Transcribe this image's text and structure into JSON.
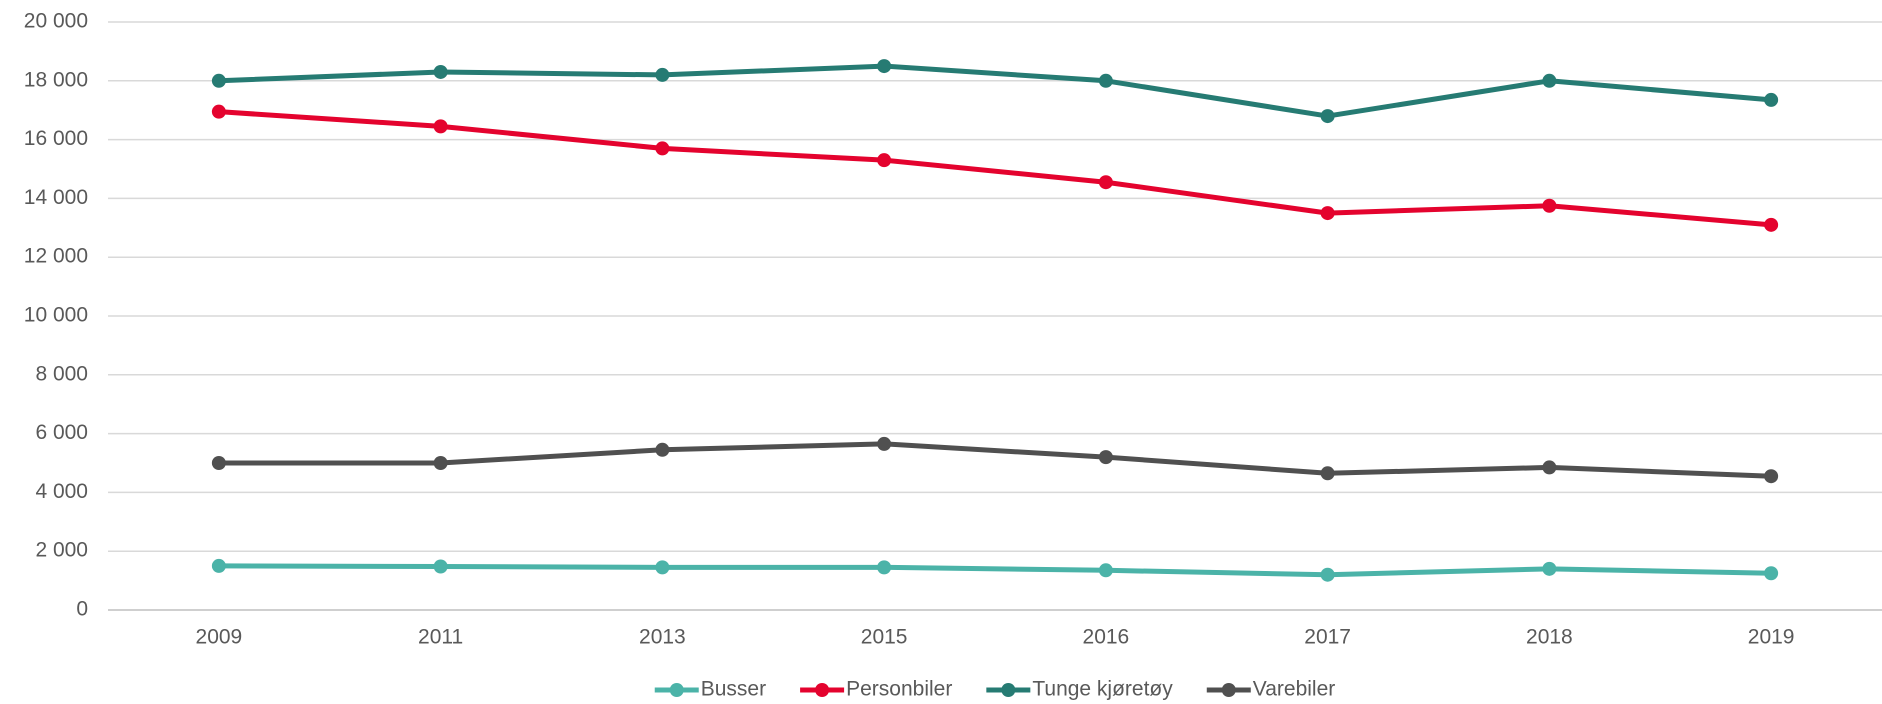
{
  "chart_data": {
    "type": "line",
    "categories": [
      "2009",
      "2011",
      "2013",
      "2015",
      "2016",
      "2017",
      "2018",
      "2019"
    ],
    "series": [
      {
        "name": "Busser",
        "color": "#4bb3a8",
        "values": [
          1500,
          1480,
          1450,
          1450,
          1350,
          1200,
          1400,
          1250
        ]
      },
      {
        "name": "Personbiler",
        "color": "#e4032e",
        "values": [
          16950,
          16450,
          15700,
          15300,
          14550,
          13500,
          13750,
          13100
        ]
      },
      {
        "name": "Tunge kjøretøy",
        "color": "#267b73",
        "values": [
          18000,
          18300,
          18200,
          18500,
          18000,
          16800,
          18000,
          17350
        ]
      },
      {
        "name": "Varebiler",
        "color": "#505050",
        "values": [
          5000,
          5000,
          5450,
          5650,
          5200,
          4650,
          4850,
          4550
        ]
      }
    ],
    "ylim": [
      0,
      20000
    ],
    "yticks": [
      0,
      {
        "value": 2000,
        "label": "2 000"
      },
      {
        "value": 4000,
        "label": "4 000"
      },
      {
        "value": 6000,
        "label": "6 000"
      },
      {
        "value": 8000,
        "label": "8 000"
      },
      {
        "value": 10000,
        "label": "10 000"
      },
      {
        "value": 12000,
        "label": "12 000"
      },
      {
        "value": 14000,
        "label": "14 000"
      },
      {
        "value": 16000,
        "label": "16 000"
      },
      {
        "value": 18000,
        "label": "18 000"
      },
      {
        "value": 20000,
        "label": "20 000"
      }
    ],
    "grid": true,
    "legend": "bottom"
  }
}
